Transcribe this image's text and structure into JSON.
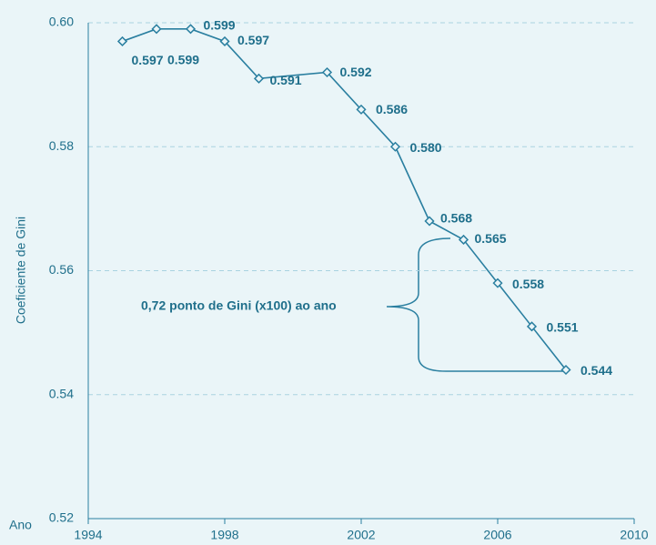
{
  "chart_data": {
    "type": "line",
    "y_label": "Coeficiente de Gini",
    "x_label": "Ano",
    "annotation": "0,72 ponto de Gini (x100) ao ano",
    "x": [
      1995,
      1996,
      1997,
      1998,
      1999,
      2001,
      2002,
      2003,
      2004,
      2005,
      2006,
      2007,
      2008
    ],
    "series": [
      {
        "name": "Coeficiente de Gini",
        "color": "#2a7fa0",
        "values": [
          0.597,
          0.599,
          0.599,
          0.597,
          0.591,
          0.592,
          0.586,
          0.58,
          0.568,
          0.565,
          0.558,
          0.551,
          0.544
        ],
        "value_labels": [
          "0.597",
          "0.599",
          "0.599",
          "0.597",
          "0.591",
          "0.592",
          "0.586",
          "0.580",
          "0.568",
          "0.565",
          "0.558",
          "0.551",
          "0.544"
        ]
      }
    ],
    "xlim": [
      1994,
      2010
    ],
    "xticks": [
      1994,
      1998,
      2002,
      2006,
      2010
    ],
    "ylim": [
      0.52,
      0.6
    ],
    "yticks": [
      0.52,
      0.54,
      0.56,
      0.58,
      {
        "value": 0.6,
        "label": "0.60"
      }
    ],
    "grid": true
  }
}
